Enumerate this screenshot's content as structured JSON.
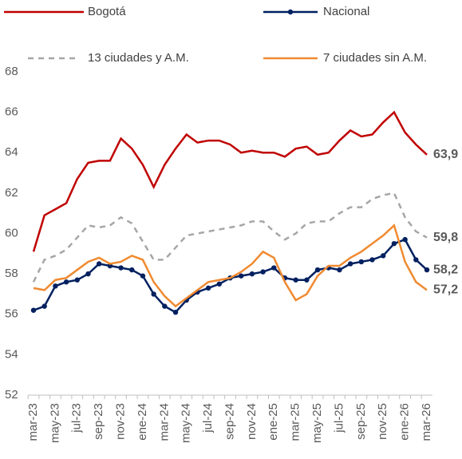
{
  "chart_data": {
    "type": "line",
    "categories": [
      "mar-23",
      null,
      "may-23",
      null,
      "jul-23",
      null,
      "sep-23",
      null,
      "nov-23",
      null,
      "ene-24",
      null,
      "mar-24",
      null,
      "may-24",
      null,
      "jul-24",
      null,
      "sep-24",
      null,
      "nov-24",
      null,
      "ene-25",
      null,
      "mar-25",
      null,
      "may-25",
      null,
      "jul-25",
      null,
      "sep-25",
      null,
      "nov-25",
      null,
      "ene-26",
      null,
      "mar-26"
    ],
    "series": [
      {
        "name": "Bogotá",
        "color": "#c00000",
        "dash": false,
        "marker": false,
        "values": [
          59.1,
          60.9,
          61.2,
          61.5,
          62.7,
          63.5,
          63.6,
          63.6,
          64.7,
          64.2,
          63.4,
          62.3,
          63.4,
          64.2,
          64.9,
          64.5,
          64.6,
          64.6,
          64.4,
          64.0,
          64.1,
          64.0,
          64.0,
          63.8,
          64.2,
          64.3,
          63.9,
          64.0,
          64.6,
          65.1,
          64.8,
          64.9,
          65.5,
          66.0,
          65.0,
          64.4,
          63.9
        ],
        "value_labels": [
          null,
          null,
          null,
          null,
          null,
          null,
          null,
          null,
          null,
          null,
          null,
          null,
          null,
          null,
          null,
          null,
          null,
          null,
          null,
          null,
          null,
          null,
          null,
          null,
          null,
          null,
          null,
          null,
          null,
          null,
          null,
          null,
          null,
          null,
          null,
          null,
          "63,9"
        ]
      },
      {
        "name": "Nacional",
        "color": "#002060",
        "dash": false,
        "marker": true,
        "values": [
          56.2,
          56.4,
          57.4,
          57.6,
          57.7,
          58.0,
          58.5,
          58.4,
          58.3,
          58.2,
          57.9,
          57.0,
          56.4,
          56.1,
          56.7,
          57.1,
          57.3,
          57.5,
          57.8,
          57.9,
          58.0,
          58.1,
          58.3,
          57.8,
          57.7,
          57.7,
          58.2,
          58.3,
          58.2,
          58.5,
          58.6,
          58.7,
          58.9,
          59.5,
          59.7,
          58.7,
          58.2
        ],
        "value_labels": [
          null,
          null,
          null,
          null,
          null,
          null,
          null,
          null,
          null,
          null,
          null,
          null,
          null,
          null,
          null,
          null,
          null,
          null,
          null,
          null,
          null,
          null,
          null,
          null,
          null,
          null,
          null,
          null,
          null,
          null,
          null,
          null,
          null,
          null,
          null,
          null,
          "58,2"
        ]
      },
      {
        "name": "13 ciudades y A.M.",
        "color": "#a6a6a6",
        "dash": true,
        "marker": false,
        "values": [
          57.6,
          58.7,
          58.9,
          59.2,
          59.8,
          60.4,
          60.3,
          60.4,
          60.8,
          60.5,
          59.6,
          58.7,
          58.7,
          59.3,
          59.9,
          60.0,
          60.1,
          60.2,
          60.3,
          60.4,
          60.6,
          60.6,
          60.1,
          59.7,
          60.0,
          60.5,
          60.6,
          60.6,
          61.0,
          61.3,
          61.3,
          61.7,
          61.9,
          62.0,
          60.8,
          60.1,
          59.8
        ],
        "value_labels": [
          null,
          null,
          null,
          null,
          null,
          null,
          null,
          null,
          null,
          null,
          null,
          null,
          null,
          null,
          null,
          null,
          null,
          null,
          null,
          null,
          null,
          null,
          null,
          null,
          null,
          null,
          null,
          null,
          null,
          null,
          null,
          null,
          null,
          null,
          null,
          null,
          "59,8"
        ]
      },
      {
        "name": "7 ciudades sin A.M.",
        "color": "#f08a30",
        "dash": false,
        "marker": false,
        "values": [
          57.3,
          57.2,
          57.7,
          57.8,
          58.2,
          58.6,
          58.8,
          58.5,
          58.6,
          58.9,
          58.7,
          57.6,
          56.9,
          56.4,
          56.8,
          57.2,
          57.6,
          57.7,
          57.8,
          58.1,
          58.5,
          59.1,
          58.8,
          57.6,
          56.7,
          57.0,
          57.9,
          58.4,
          58.4,
          58.8,
          59.1,
          59.5,
          59.9,
          60.4,
          58.6,
          57.6,
          57.2
        ],
        "value_labels": [
          null,
          null,
          null,
          null,
          null,
          null,
          null,
          null,
          null,
          null,
          null,
          null,
          null,
          null,
          null,
          null,
          null,
          null,
          null,
          null,
          null,
          null,
          null,
          null,
          null,
          null,
          null,
          null,
          null,
          null,
          null,
          null,
          null,
          null,
          null,
          null,
          "57,2"
        ]
      }
    ],
    "ylim": [
      52,
      68
    ],
    "yticks": [
      52,
      54,
      56,
      58,
      60,
      62,
      64,
      66,
      68
    ],
    "grid": false,
    "legend": "top"
  }
}
